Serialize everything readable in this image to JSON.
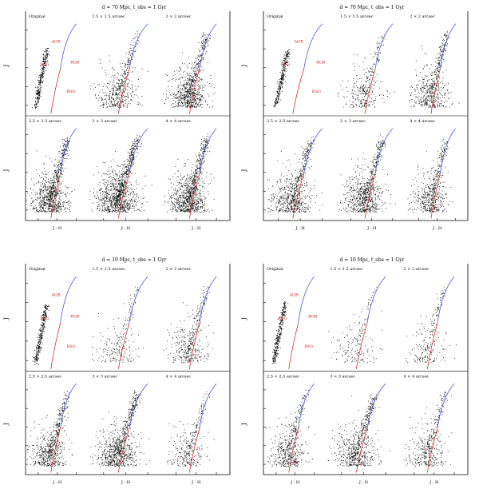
{
  "chart_data": [
    {
      "type": "scatter",
      "title": "d = 70 Mpc, t_obs = 1 Gyr",
      "ylabel": "J",
      "xlabel": "J - H",
      "panel_labels": [
        "Original",
        "1.5 × 1.5 arcsec",
        "2 × 2 arcsec",
        "2.5 × 2.5 arcsec",
        "3 × 3 arcsec",
        "4 × 4 arcsec"
      ],
      "annotations": [
        "AGB",
        "RGB",
        "RSG",
        "BSG"
      ]
    },
    {
      "type": "scatter",
      "title": "d = 70 Mpc, t_obs = 1 Gyr",
      "ylabel": "J",
      "xlabel": "J - H",
      "panel_labels": [
        "Original",
        "1.5 × 1.5 arcsec",
        "2 × 2 arcsec",
        "2.5 × 2.5 arcsec",
        "3 × 3 arcsec",
        "4 × 4 arcsec"
      ],
      "annotations": [
        "AGB",
        "RGB",
        "RSG",
        "BSG"
      ]
    },
    {
      "type": "scatter",
      "title": "d = 10 Mpc, t_obs = 1 Gyr",
      "ylabel": "J",
      "xlabel": "J - H",
      "panel_labels": [
        "Original",
        "1.5 × 1.5 arcsec",
        "2 × 2 arcsec",
        "2.5 × 2.5 arcsec",
        "3 × 3 arcsec",
        "4 × 4 arcsec"
      ],
      "annotations": [
        "AGB",
        "RGB",
        "RSG",
        "BSG"
      ]
    },
    {
      "type": "scatter",
      "title": "d = 10 Mpc, t_obs = 1 Gyr",
      "ylabel": "J",
      "xlabel": "J - H",
      "panel_labels": [
        "Original",
        "1.5 × 1.5 arcsec",
        "2 × 2 arcsec",
        "2.5 × 2.5 arcsec",
        "3 × 3 arcsec",
        "4 × 4 arcsec"
      ],
      "annotations": [
        "AGB",
        "RGB",
        "RSG",
        "BSG"
      ]
    }
  ],
  "colors": {
    "points": "#000000",
    "isochrone_blue": "#4a5ad8",
    "isochrone_red": "#d23232",
    "annotation": "#c81e1e",
    "axis": "#000000"
  }
}
